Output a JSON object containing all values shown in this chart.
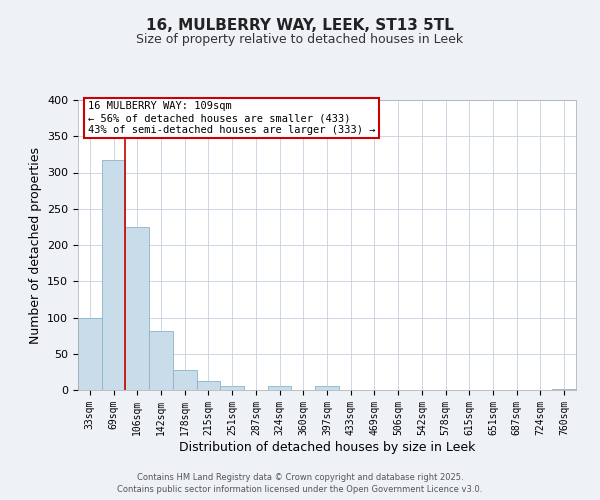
{
  "title": "16, MULBERRY WAY, LEEK, ST13 5TL",
  "subtitle": "Size of property relative to detached houses in Leek",
  "xlabel": "Distribution of detached houses by size in Leek",
  "ylabel": "Number of detached properties",
  "bar_labels": [
    "33sqm",
    "69sqm",
    "106sqm",
    "142sqm",
    "178sqm",
    "215sqm",
    "251sqm",
    "287sqm",
    "324sqm",
    "360sqm",
    "397sqm",
    "433sqm",
    "469sqm",
    "506sqm",
    "542sqm",
    "578sqm",
    "615sqm",
    "651sqm",
    "687sqm",
    "724sqm",
    "760sqm"
  ],
  "bar_values": [
    100,
    317,
    225,
    82,
    28,
    12,
    5,
    0,
    5,
    0,
    6,
    0,
    0,
    0,
    0,
    0,
    0,
    0,
    0,
    0,
    2
  ],
  "bar_color": "#c9dcea",
  "bar_edgecolor": "#8ab4cc",
  "vline_index": 2,
  "vline_color": "#cc0000",
  "ylim": [
    0,
    400
  ],
  "yticks": [
    0,
    50,
    100,
    150,
    200,
    250,
    300,
    350,
    400
  ],
  "annotation_title": "16 MULBERRY WAY: 109sqm",
  "annotation_line1": "← 56% of detached houses are smaller (433)",
  "annotation_line2": "43% of semi-detached houses are larger (333) →",
  "annotation_box_facecolor": "#ffffff",
  "annotation_box_edgecolor": "#cc0000",
  "footer1": "Contains HM Land Registry data © Crown copyright and database right 2025.",
  "footer2": "Contains public sector information licensed under the Open Government Licence v3.0.",
  "bg_color": "#eef2f7",
  "plot_bg_color": "#ffffff",
  "grid_color": "#c5d0de",
  "title_fontsize": 11,
  "subtitle_fontsize": 9,
  "xlabel_fontsize": 9,
  "ylabel_fontsize": 9,
  "tick_fontsize": 7,
  "annotation_fontsize": 7.5,
  "footer_fontsize": 6
}
